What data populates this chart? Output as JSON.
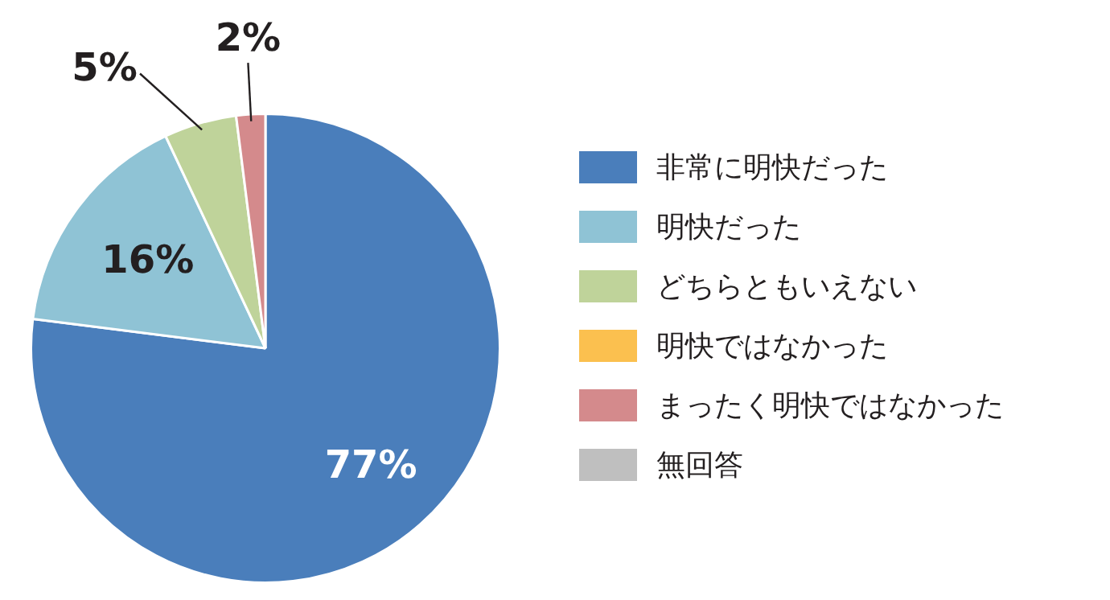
{
  "chart_data": {
    "type": "pie",
    "categories": [
      "非常に明快だった",
      "明快だった",
      "どちらともいえない",
      "明快ではなかった",
      "まったく明快ではなかった",
      "無回答"
    ],
    "values": [
      77,
      16,
      5,
      0,
      2,
      0
    ],
    "colors": [
      "#4a7ebb",
      "#8fc3d5",
      "#bfd39a",
      "#fbc04f",
      "#d48a8c",
      "#bfbfbf"
    ],
    "value_labels": [
      "77%",
      "16%",
      "5%",
      null,
      "2%",
      null
    ],
    "legend": "right"
  }
}
